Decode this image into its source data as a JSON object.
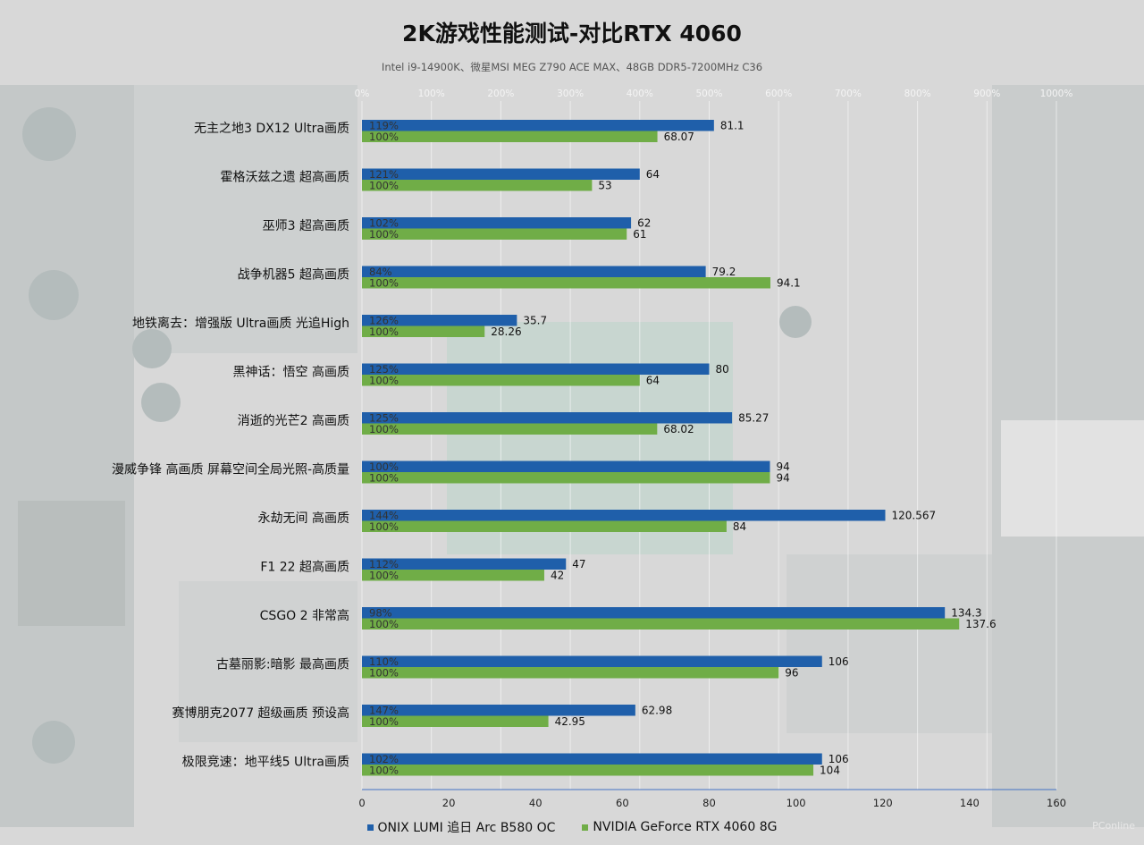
{
  "chart_data": {
    "type": "bar",
    "orientation": "horizontal",
    "title": "2K游戏性能测试-对比RTX 4060",
    "subtitle": "Intel i9-14900K、微星MSI  MEG Z790 ACE MAX、48GB DDR5-7200MHz  C36",
    "categories": [
      "无主之地3 DX12 Ultra画质",
      "霍格沃兹之遗 超高画质",
      "巫师3 超高画质",
      "战争机器5 超高画质",
      "地铁离去：增强版 Ultra画质 光追High",
      "黑神话：悟空 高画质",
      "消逝的光芒2 高画质",
      "漫威争锋 高画质 屏幕空间全局光照-高质量",
      "永劫无间 高画质",
      "F1 22 超高画质",
      "CSGO 2 非常高",
      "古墓丽影:暗影 最高画质",
      "赛博朋克2077 超级画质 预设高",
      "极限竞速：地平线5 Ultra画质"
    ],
    "series": [
      {
        "name": "ONIX LUMI 追日 Arc B580 OC",
        "color": "#1f5faa",
        "values": [
          81.1,
          64,
          62,
          79.2,
          35.7,
          80,
          85.27,
          94,
          120.567,
          47,
          134.3,
          106,
          62.98,
          106
        ],
        "value_labels": [
          "81.1",
          "64",
          "62",
          "79.2",
          "35.7",
          "80",
          "85.27",
          "94",
          "120.567",
          "47",
          "134.3",
          "106",
          "62.98",
          "106"
        ],
        "percent_labels": [
          "119%",
          "121%",
          "102%",
          "84%",
          "126%",
          "125%",
          "125%",
          "100%",
          "144%",
          "112%",
          "98%",
          "110%",
          "147%",
          "102%"
        ]
      },
      {
        "name": "NVIDIA GeForce RTX 4060 8G",
        "color": "#70ad47",
        "values": [
          68.07,
          53,
          61,
          94.1,
          28.26,
          64,
          68.02,
          94,
          84,
          42,
          137.6,
          96,
          42.95,
          104
        ],
        "value_labels": [
          "68.07",
          "53",
          "61",
          "94.1",
          "28.26",
          "64",
          "68.02",
          "94",
          "84",
          "42",
          "137.6",
          "96",
          "42.95",
          "104"
        ],
        "percent_labels": [
          "100%",
          "100%",
          "100%",
          "100%",
          "100%",
          "100%",
          "100%",
          "100%",
          "100%",
          "100%",
          "100%",
          "100%",
          "100%",
          "100%"
        ]
      }
    ],
    "x_axis": {
      "range": [
        0,
        160
      ],
      "ticks": [
        "0",
        "20",
        "40",
        "60",
        "80",
        "100",
        "120",
        "140",
        "160"
      ]
    },
    "x2_axis": {
      "position": "top",
      "range": [
        0,
        1000
      ],
      "ticks": [
        "0%",
        "100%",
        "200%",
        "300%",
        "400%",
        "500%",
        "600%",
        "700%",
        "800%",
        "900%",
        "1000%"
      ]
    },
    "grid": true,
    "legend": "bottom"
  },
  "watermark": "PConline"
}
